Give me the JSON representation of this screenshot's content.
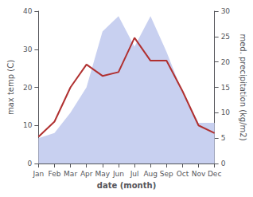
{
  "chart_data": {
    "type": "line",
    "categories": [
      "Jan",
      "Feb",
      "Mar",
      "Apr",
      "May",
      "Jun",
      "Jul",
      "Aug",
      "Sep",
      "Oct",
      "Nov",
      "Dec"
    ],
    "xlabel": "date (month)",
    "ylabel": "max temp (C)",
    "y2label": "med. precipitation (kg/m2)",
    "ylim": [
      0,
      40
    ],
    "yticks": [
      0,
      10,
      20,
      30,
      40
    ],
    "y2lim": [
      0,
      30
    ],
    "y2ticks": [
      0,
      5,
      10,
      15,
      20,
      25,
      30
    ],
    "grid": false,
    "series": [
      {
        "type": "area",
        "axis": "y2",
        "color": "#c8d0f0",
        "values": [
          5,
          6,
          10,
          15,
          26,
          29,
          23,
          29,
          22,
          14,
          8,
          8
        ]
      },
      {
        "type": "line",
        "color": "#b03030",
        "values": [
          7,
          11,
          20,
          26,
          23,
          24,
          33,
          27,
          27,
          19,
          10,
          8
        ]
      }
    ]
  }
}
